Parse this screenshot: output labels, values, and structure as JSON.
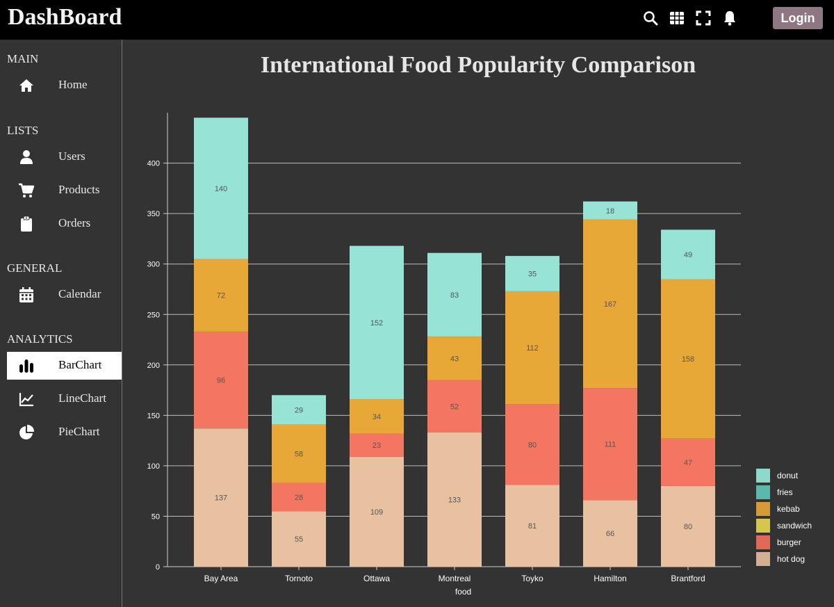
{
  "app": {
    "title": "DashBoard",
    "login_label": "Login"
  },
  "topbar": {
    "icons": [
      "search-icon",
      "grid-icon",
      "fullscreen-icon",
      "bell-icon"
    ]
  },
  "sidebar": {
    "sections": [
      {
        "title": "MAIN",
        "items": [
          {
            "label": "Home",
            "icon": "home-icon"
          }
        ]
      },
      {
        "title": "LISTS",
        "items": [
          {
            "label": "Users",
            "icon": "user-icon"
          },
          {
            "label": "Products",
            "icon": "cart-icon"
          },
          {
            "label": "Orders",
            "icon": "clipboard-icon"
          }
        ]
      },
      {
        "title": "GENERAL",
        "items": [
          {
            "label": "Calendar",
            "icon": "calendar-icon"
          }
        ]
      },
      {
        "title": "ANALYTICS",
        "items": [
          {
            "label": "BarChart",
            "icon": "bar-chart-icon",
            "active": true
          },
          {
            "label": "LineChart",
            "icon": "line-chart-icon"
          },
          {
            "label": "PieChart",
            "icon": "pie-chart-icon"
          }
        ]
      }
    ]
  },
  "chart_data": {
    "type": "bar",
    "stacked": true,
    "title": "International Food Popularity Comparison",
    "xlabel": "food",
    "ylabel": "",
    "ylim": [
      0,
      450
    ],
    "yticks": [
      0,
      50,
      100,
      150,
      200,
      250,
      300,
      350,
      400
    ],
    "grid": true,
    "legend_position": "bottom-right",
    "categories": [
      "Bay Area",
      "Tornoto",
      "Ottawa",
      "Montreal",
      "Toyko",
      "Hamilton",
      "Brantford"
    ],
    "series": [
      {
        "name": "hot dog",
        "color": "#e8c1a0",
        "values": [
          137,
          55,
          109,
          133,
          81,
          66,
          80
        ]
      },
      {
        "name": "burger",
        "color": "#f47560",
        "values": [
          96,
          28,
          23,
          52,
          80,
          111,
          47
        ]
      },
      {
        "name": "sandwich",
        "color": "#f1e15b",
        "values": [
          0,
          0,
          0,
          0,
          0,
          0,
          0
        ]
      },
      {
        "name": "kebab",
        "color": "#e8a838",
        "values": [
          72,
          58,
          34,
          43,
          112,
          167,
          158
        ]
      },
      {
        "name": "fries",
        "color": "#61cdbb",
        "values": [
          0,
          0,
          0,
          0,
          0,
          0,
          0
        ]
      },
      {
        "name": "donut",
        "color": "#97e3d5",
        "values": [
          140,
          29,
          152,
          83,
          35,
          18,
          49
        ]
      }
    ],
    "legend": [
      {
        "name": "donut",
        "color": "#8fd9cc"
      },
      {
        "name": "fries",
        "color": "#5cb8aa"
      },
      {
        "name": "kebab",
        "color": "#d69a36"
      },
      {
        "name": "sandwich",
        "color": "#d6c650"
      },
      {
        "name": "burger",
        "color": "#e06a57"
      },
      {
        "name": "hot dog",
        "color": "#d4b093"
      }
    ]
  }
}
